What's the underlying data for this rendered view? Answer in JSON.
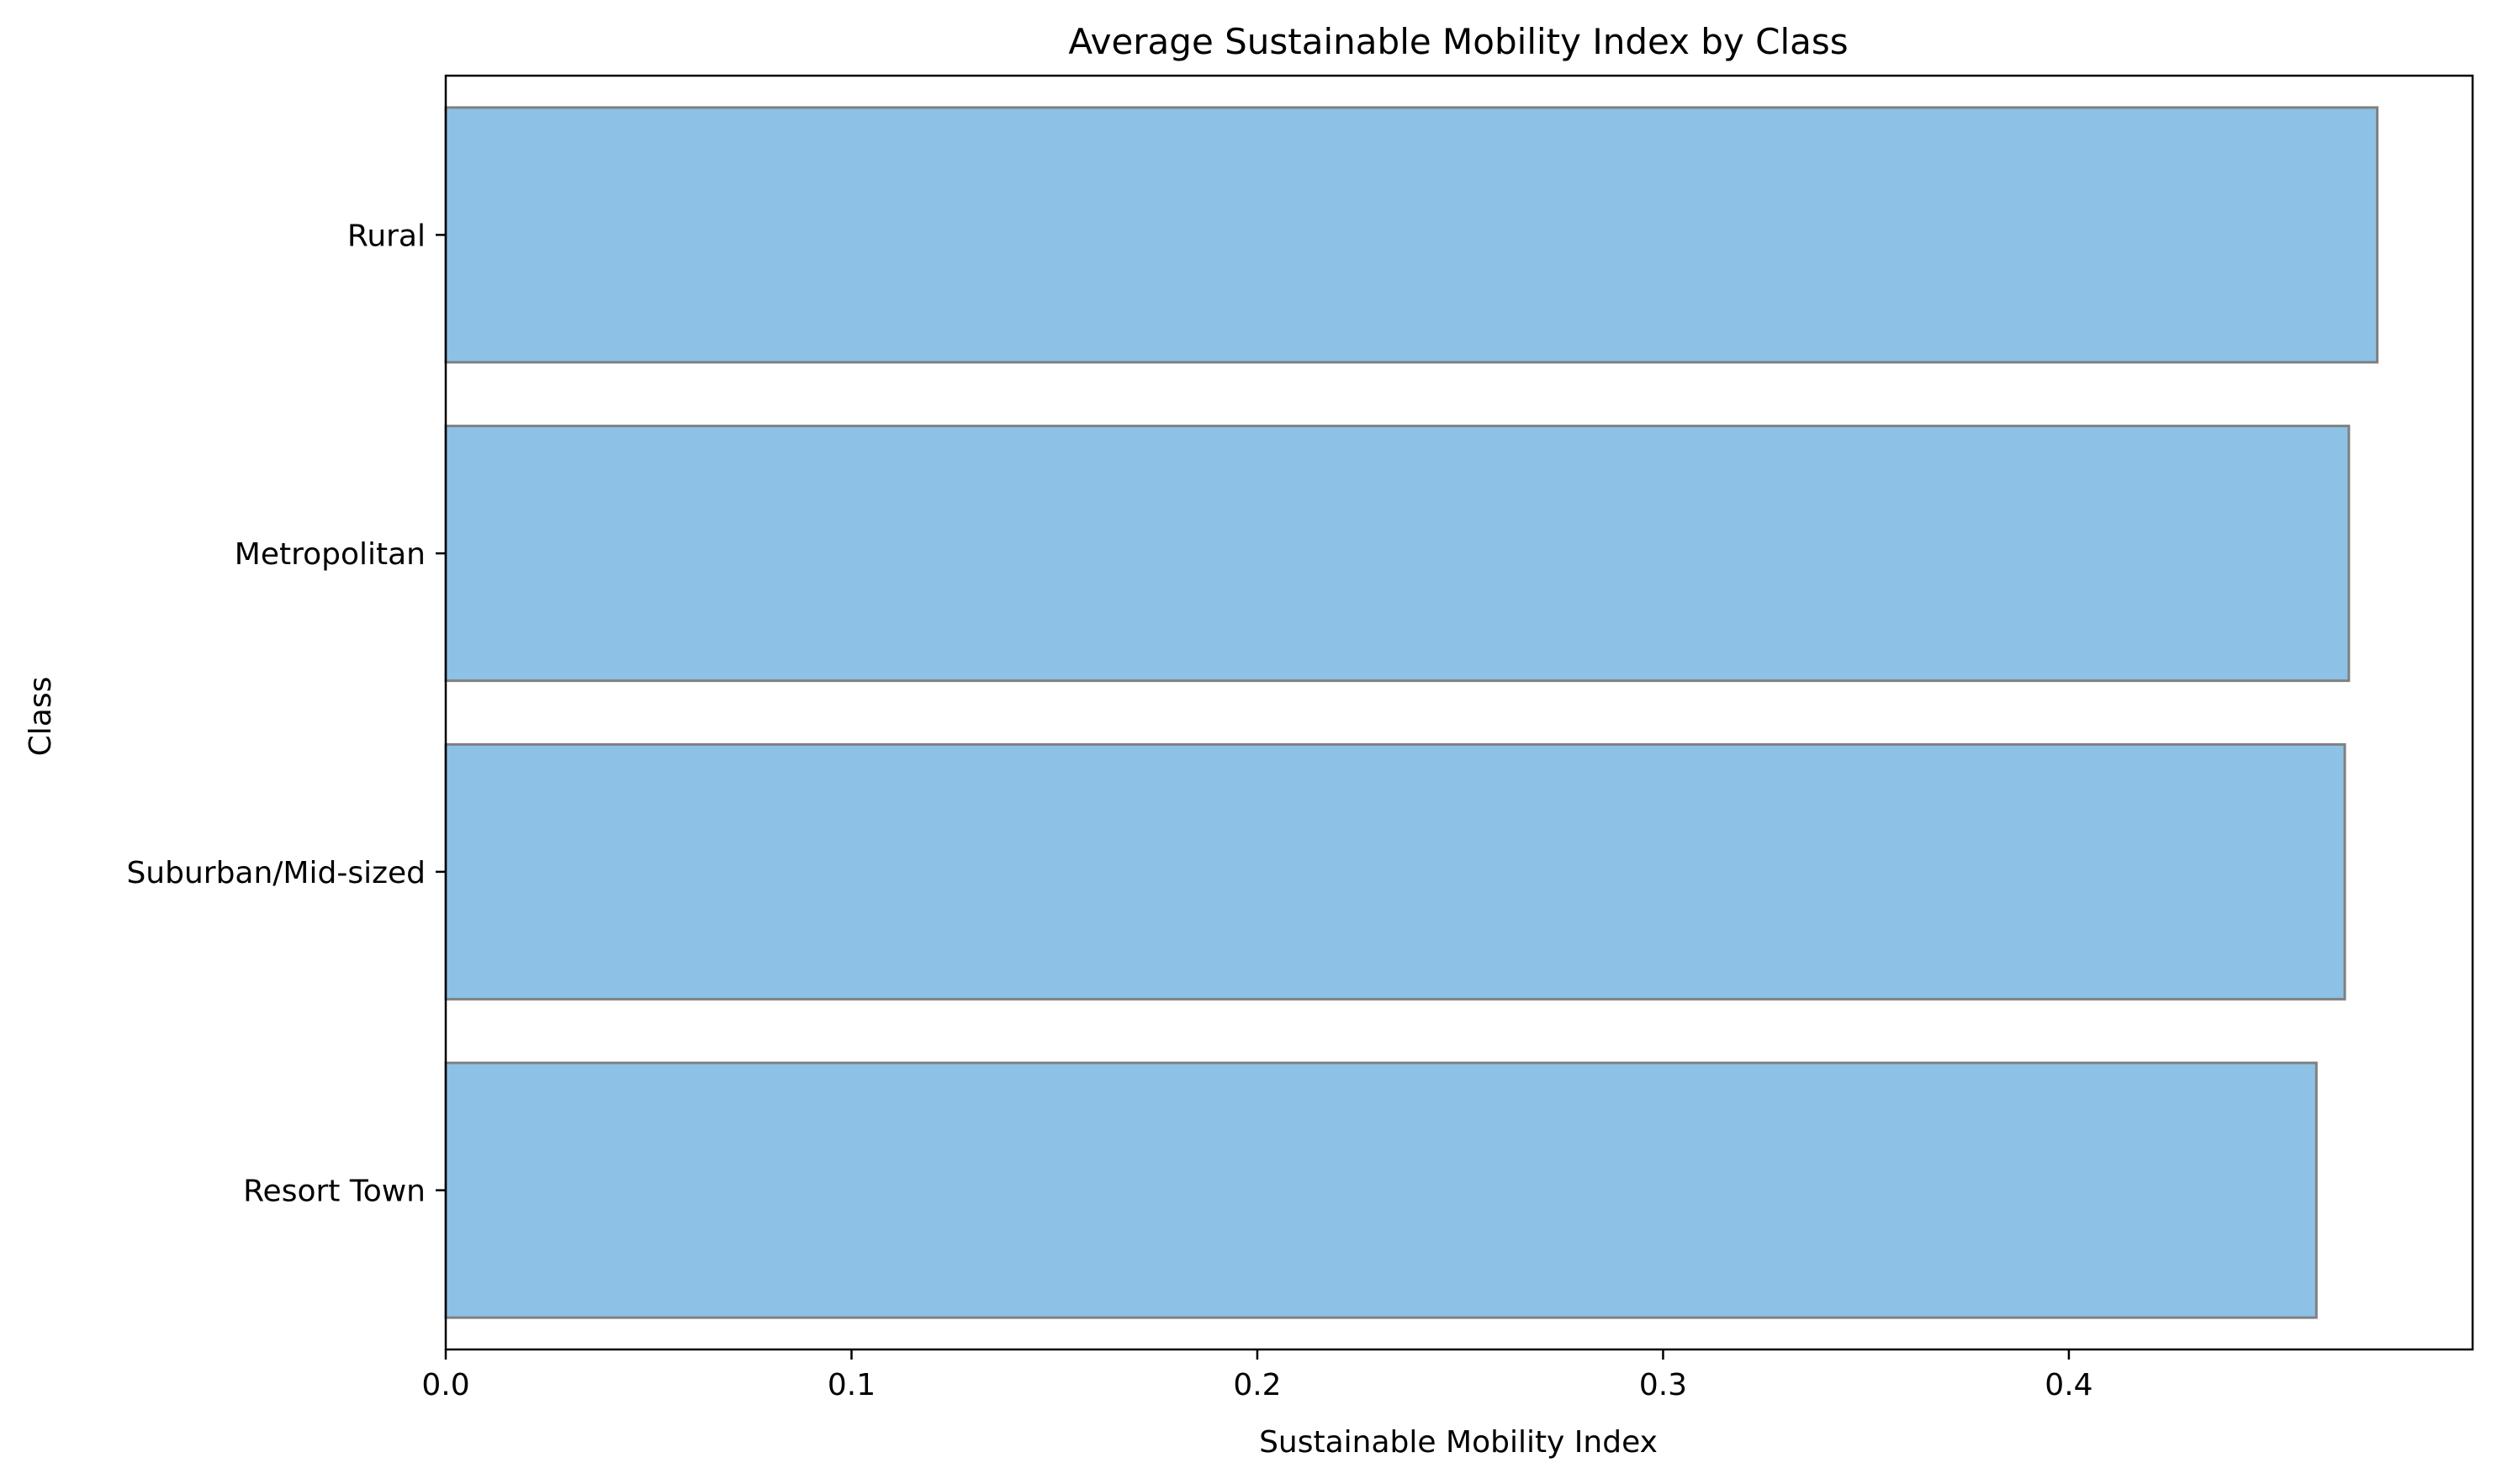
{
  "chart_data": {
    "type": "bar",
    "orientation": "horizontal",
    "title": "Average Sustainable Mobility Index by Class",
    "xlabel": "Sustainable Mobility Index",
    "ylabel": "Class",
    "categories": [
      "Rural",
      "Metropolitan",
      "Suburban/Mid-sized",
      "Resort Town"
    ],
    "values": [
      0.476,
      0.469,
      0.468,
      0.461
    ],
    "xlim": [
      0,
      0.4995
    ],
    "xticks": [
      0.0,
      0.1,
      0.2,
      0.3,
      0.4
    ],
    "xtick_labels": [
      "0.0",
      "0.1",
      "0.2",
      "0.3",
      "0.4"
    ],
    "grid": false,
    "legend": "none",
    "colors": {
      "bar_fill": "#8dc2e6",
      "bar_edge": "#808080"
    }
  }
}
